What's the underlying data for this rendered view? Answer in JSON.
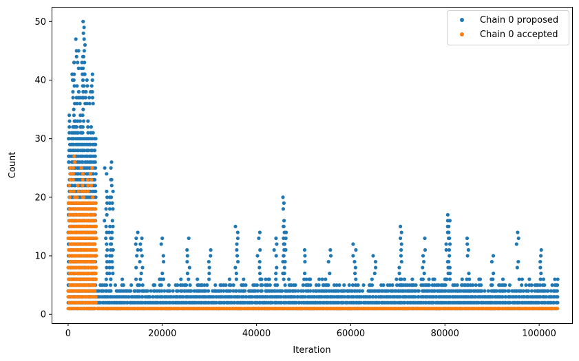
{
  "chart_data": {
    "type": "scatter",
    "xlabel": "Iteration",
    "ylabel": "Count",
    "xlim": [
      -3500,
      107000
    ],
    "ylim": [
      -1.5,
      52.5
    ],
    "x_ticks": [
      0,
      20000,
      40000,
      60000,
      80000,
      100000
    ],
    "x_tick_labels": [
      "0",
      "20000",
      "40000",
      "60000",
      "80000",
      "100000"
    ],
    "y_ticks": [
      0,
      10,
      20,
      30,
      40,
      50
    ],
    "y_tick_labels": [
      "0",
      "10",
      "20",
      "30",
      "40",
      "50"
    ],
    "grid": false,
    "legend_position": "top-right",
    "series": [
      {
        "name": "Chain 0 proposed",
        "color": "#1f77b4",
        "bands": [
          {
            "x_start": 0,
            "x_end": 6000,
            "y_min": 1,
            "y_max": 35
          },
          {
            "x_start": 6000,
            "x_end": 104000,
            "y_min": 1,
            "y_max": 5
          }
        ],
        "spikes": [
          {
            "x": 1000,
            "y": 43
          },
          {
            "x": 1500,
            "y": 47
          },
          {
            "x": 2000,
            "y": 45
          },
          {
            "x": 2500,
            "y": 38
          },
          {
            "x": 3000,
            "y": 44
          },
          {
            "x": 3400,
            "y": 50
          },
          {
            "x": 3800,
            "y": 41
          },
          {
            "x": 4500,
            "y": 38
          },
          {
            "x": 5300,
            "y": 41
          },
          {
            "x": 8000,
            "y": 25
          },
          {
            "x": 9000,
            "y": 26
          },
          {
            "x": 9300,
            "y": 23
          },
          {
            "x": 14500,
            "y": 14
          },
          {
            "x": 15500,
            "y": 13
          },
          {
            "x": 20000,
            "y": 13
          },
          {
            "x": 25500,
            "y": 13
          },
          {
            "x": 30000,
            "y": 11
          },
          {
            "x": 35800,
            "y": 15
          },
          {
            "x": 40500,
            "y": 14
          },
          {
            "x": 44000,
            "y": 13
          },
          {
            "x": 45800,
            "y": 20
          },
          {
            "x": 46000,
            "y": 15
          },
          {
            "x": 50000,
            "y": 11
          },
          {
            "x": 55500,
            "y": 11
          },
          {
            "x": 60800,
            "y": 12
          },
          {
            "x": 65000,
            "y": 10
          },
          {
            "x": 70500,
            "y": 15
          },
          {
            "x": 75500,
            "y": 13
          },
          {
            "x": 80500,
            "y": 17
          },
          {
            "x": 81000,
            "y": 16
          },
          {
            "x": 85000,
            "y": 13
          },
          {
            "x": 90000,
            "y": 10
          },
          {
            "x": 95500,
            "y": 14
          },
          {
            "x": 100500,
            "y": 11
          }
        ]
      },
      {
        "name": "Chain 0 accepted",
        "color": "#ff7f0e",
        "bands": [
          {
            "x_start": 0,
            "x_end": 6000,
            "y_min": 1,
            "y_max": 19
          },
          {
            "x_start": 6000,
            "x_end": 104000,
            "y_min": 1,
            "y_max": 1
          }
        ],
        "spikes": [
          {
            "x": 500,
            "y": 25
          },
          {
            "x": 1200,
            "y": 27
          },
          {
            "x": 2000,
            "y": 22
          },
          {
            "x": 3000,
            "y": 25
          },
          {
            "x": 3500,
            "y": 21
          },
          {
            "x": 4200,
            "y": 23
          },
          {
            "x": 5000,
            "y": 25
          }
        ]
      }
    ]
  }
}
